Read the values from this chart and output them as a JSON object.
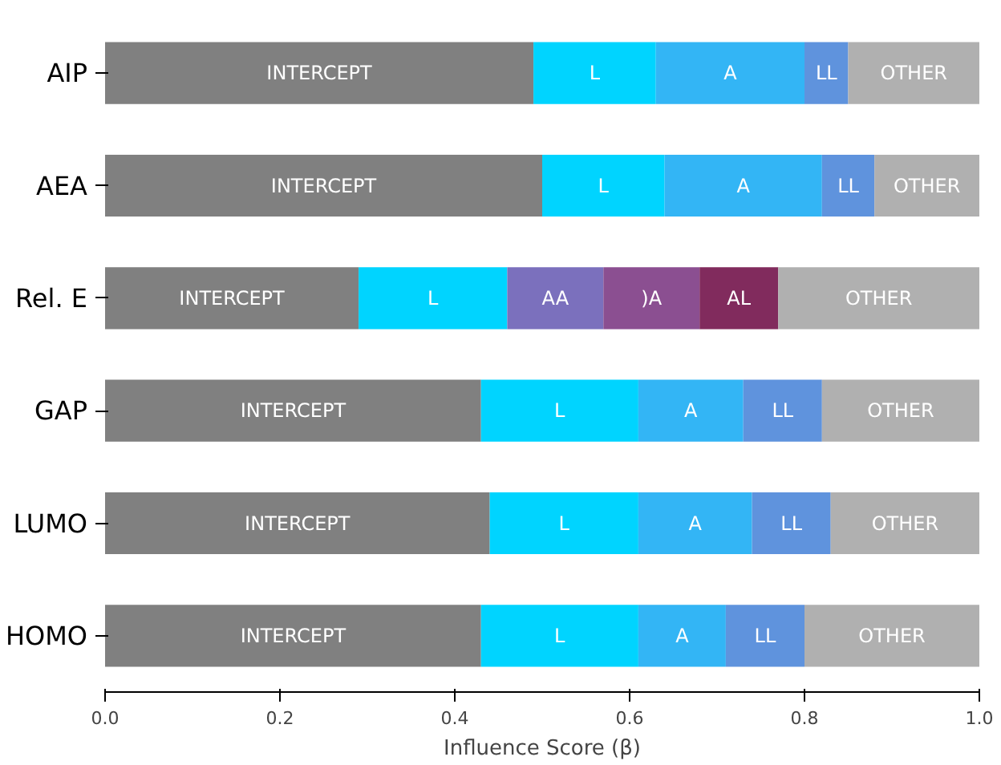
{
  "chart_data": {
    "type": "bar",
    "orientation": "horizontal",
    "stacked": true,
    "xlabel": "Influence Score (β)",
    "categories": [
      "AIP",
      "AEA",
      "Rel. E",
      "GAP",
      "LUMO",
      "HOMO"
    ],
    "xlim": [
      0,
      1
    ],
    "xticks": [
      {
        "value": 0,
        "label": "0.0"
      },
      {
        "value": 0.2,
        "label": "0.2"
      },
      {
        "value": 0.4,
        "label": "0.4"
      },
      {
        "value": 0.6,
        "label": "0.6"
      },
      {
        "value": 0.8,
        "label": "0.8"
      },
      {
        "value": 1,
        "label": "1.0"
      }
    ],
    "grid": false,
    "legend": false,
    "series": [
      {
        "name": "INTERCEPT",
        "color": "#808080",
        "values": [
          0.49,
          0.5,
          0.29,
          0.43,
          0.44,
          0.43
        ]
      },
      {
        "name": "L",
        "color": "#00d4ff",
        "values": [
          0.14,
          0.14,
          0.17,
          0.18,
          0.17,
          0.18
        ]
      },
      {
        "name": "A",
        "color": "#33b5f5",
        "values": [
          0.17,
          0.18,
          null,
          0.12,
          0.13,
          0.1
        ]
      },
      {
        "name": "AA",
        "color": "#7b70bd",
        "values": [
          null,
          null,
          0.11,
          null,
          null,
          null
        ]
      },
      {
        "name": ")A",
        "color": "#8b4f91",
        "values": [
          null,
          null,
          0.11,
          null,
          null,
          null
        ]
      },
      {
        "name": "AL",
        "color": "#812b5d",
        "values": [
          null,
          null,
          0.09,
          null,
          null,
          null
        ]
      },
      {
        "name": "LL",
        "color": "#5f93dd",
        "values": [
          0.05,
          0.06,
          null,
          0.09,
          0.09,
          0.09
        ]
      },
      {
        "name": "OTHER",
        "color": "#b0b0b0",
        "values": [
          0.15,
          0.12,
          0.23,
          0.18,
          0.17,
          0.2
        ]
      }
    ]
  }
}
